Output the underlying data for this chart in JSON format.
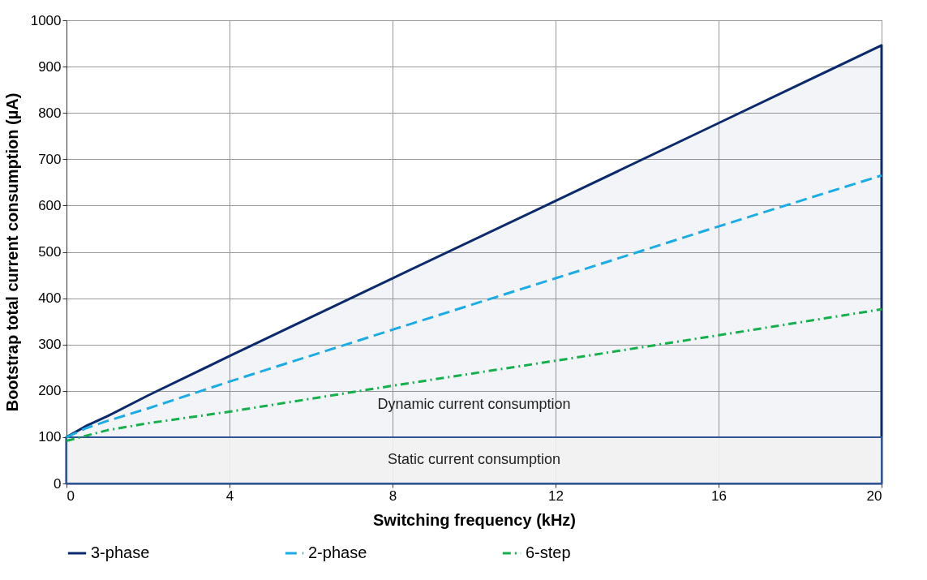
{
  "chart_data": {
    "type": "line",
    "xlabel": "Switching frequency (kHz)",
    "ylabel": "Bootstrap total current consumption (µA)",
    "xlim": [
      0,
      20
    ],
    "xticks": [
      0,
      4,
      8,
      12,
      16,
      20
    ],
    "ylim": [
      0,
      1000
    ],
    "yticks": [
      0,
      100,
      200,
      300,
      400,
      500,
      600,
      700,
      800,
      900,
      1000
    ],
    "grid": true,
    "legend": "bottom",
    "marker": "none",
    "series": [
      {
        "name": "3-phase",
        "type": "area",
        "color": "#0b2a6b",
        "line_style": "solid",
        "x": [
          0,
          0.5,
          1,
          2,
          4,
          8,
          12,
          16,
          20
        ],
        "values": [
          100,
          125,
          145,
          190,
          275,
          443,
          610,
          778,
          946
        ]
      },
      {
        "name": "2-phase",
        "color": "#1aace6",
        "line_style": "dashed",
        "x": [
          0,
          0.5,
          1,
          2,
          4,
          8,
          12,
          16,
          20
        ],
        "values": [
          100,
          120,
          135,
          162,
          220,
          332,
          443,
          555,
          665
        ]
      },
      {
        "name": "6-step",
        "color": "#13b04b",
        "line_style": "dotted",
        "x": [
          0,
          1,
          2,
          4,
          8,
          12,
          16,
          20
        ],
        "values": [
          92,
          115,
          130,
          155,
          211,
          265,
          320,
          376
        ]
      }
    ],
    "bands": [
      {
        "axis": "y",
        "from": 0,
        "to": 100,
        "label": "Static current consumption",
        "color": "#f2f2f2"
      }
    ],
    "annotations": [
      "Dynamic current consumption"
    ]
  }
}
